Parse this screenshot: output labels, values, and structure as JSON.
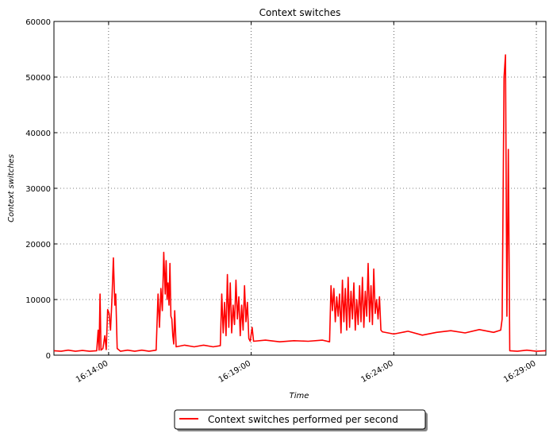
{
  "chart_data": {
    "type": "line",
    "title": "Context switches",
    "xlabel": "Time",
    "ylabel": "Context switches",
    "xlim": [
      "16:12:05",
      "16:29:20"
    ],
    "ylim": [
      0,
      60000
    ],
    "yticks": [
      0,
      10000,
      20000,
      30000,
      40000,
      50000,
      60000
    ],
    "xticks": [
      "16:14:00",
      "16:19:00",
      "16:24:00",
      "16:29:00"
    ],
    "grid": true,
    "legend_position": "bottom-center",
    "series": [
      {
        "name": "Context switches performed per second",
        "color": "#ff0000",
        "points": [
          [
            "16:12:05",
            800
          ],
          [
            "16:12:20",
            700
          ],
          [
            "16:12:35",
            900
          ],
          [
            "16:12:50",
            700
          ],
          [
            "16:13:05",
            850
          ],
          [
            "16:13:20",
            700
          ],
          [
            "16:13:35",
            800
          ],
          [
            "16:13:38",
            4500
          ],
          [
            "16:13:40",
            900
          ],
          [
            "16:13:42",
            11000
          ],
          [
            "16:13:44",
            900
          ],
          [
            "16:13:48",
            1200
          ],
          [
            "16:13:52",
            3500
          ],
          [
            "16:13:55",
            1000
          ],
          [
            "16:13:58",
            8200
          ],
          [
            "16:14:01",
            7500
          ],
          [
            "16:14:04",
            4500
          ],
          [
            "16:14:07",
            10000
          ],
          [
            "16:14:10",
            17500
          ],
          [
            "16:14:13",
            9000
          ],
          [
            "16:14:15",
            11000
          ],
          [
            "16:14:18",
            1200
          ],
          [
            "16:14:25",
            700
          ],
          [
            "16:14:40",
            900
          ],
          [
            "16:14:55",
            700
          ],
          [
            "16:15:10",
            900
          ],
          [
            "16:15:25",
            700
          ],
          [
            "16:15:40",
            900
          ],
          [
            "16:15:44",
            11000
          ],
          [
            "16:15:47",
            5000
          ],
          [
            "16:15:50",
            12000
          ],
          [
            "16:15:53",
            8000
          ],
          [
            "16:15:56",
            18500
          ],
          [
            "16:15:59",
            11000
          ],
          [
            "16:16:01",
            17000
          ],
          [
            "16:16:03",
            10000
          ],
          [
            "16:16:05",
            13000
          ],
          [
            "16:16:07",
            9000
          ],
          [
            "16:16:09",
            16500
          ],
          [
            "16:16:11",
            7000
          ],
          [
            "16:16:13",
            6500
          ],
          [
            "16:16:15",
            3500
          ],
          [
            "16:16:17",
            2000
          ],
          [
            "16:16:19",
            8000
          ],
          [
            "16:16:22",
            1500
          ],
          [
            "16:16:40",
            1800
          ],
          [
            "16:17:00",
            1500
          ],
          [
            "16:17:20",
            1800
          ],
          [
            "16:17:40",
            1500
          ],
          [
            "16:17:55",
            1700
          ],
          [
            "16:17:58",
            11000
          ],
          [
            "16:18:01",
            4000
          ],
          [
            "16:18:04",
            9500
          ],
          [
            "16:18:07",
            3500
          ],
          [
            "16:18:10",
            14500
          ],
          [
            "16:18:13",
            5000
          ],
          [
            "16:18:16",
            13000
          ],
          [
            "16:18:19",
            4000
          ],
          [
            "16:18:22",
            9000
          ],
          [
            "16:18:25",
            5500
          ],
          [
            "16:18:28",
            13500
          ],
          [
            "16:18:31",
            6500
          ],
          [
            "16:18:34",
            10500
          ],
          [
            "16:18:37",
            3500
          ],
          [
            "16:18:40",
            9000
          ],
          [
            "16:18:43",
            4500
          ],
          [
            "16:18:46",
            12500
          ],
          [
            "16:18:49",
            6000
          ],
          [
            "16:18:52",
            9500
          ],
          [
            "16:18:55",
            3000
          ],
          [
            "16:18:58",
            2500
          ],
          [
            "16:19:02",
            5000
          ],
          [
            "16:19:05",
            2500
          ],
          [
            "16:19:30",
            2700
          ],
          [
            "16:20:00",
            2400
          ],
          [
            "16:20:30",
            2600
          ],
          [
            "16:21:00",
            2500
          ],
          [
            "16:21:30",
            2700
          ],
          [
            "16:21:45",
            2400
          ],
          [
            "16:21:48",
            12500
          ],
          [
            "16:21:51",
            8000
          ],
          [
            "16:21:54",
            12000
          ],
          [
            "16:21:57",
            6000
          ],
          [
            "16:22:00",
            10500
          ],
          [
            "16:22:03",
            7000
          ],
          [
            "16:22:06",
            11000
          ],
          [
            "16:22:09",
            4000
          ],
          [
            "16:22:12",
            13500
          ],
          [
            "16:22:15",
            6000
          ],
          [
            "16:22:18",
            12000
          ],
          [
            "16:22:21",
            4500
          ],
          [
            "16:22:24",
            14000
          ],
          [
            "16:22:27",
            5000
          ],
          [
            "16:22:30",
            11500
          ],
          [
            "16:22:33",
            6500
          ],
          [
            "16:22:36",
            13000
          ],
          [
            "16:22:39",
            4500
          ],
          [
            "16:22:42",
            10000
          ],
          [
            "16:22:45",
            5500
          ],
          [
            "16:22:48",
            12500
          ],
          [
            "16:22:51",
            6000
          ],
          [
            "16:22:54",
            14000
          ],
          [
            "16:22:57",
            5000
          ],
          [
            "16:23:00",
            11500
          ],
          [
            "16:23:03",
            7000
          ],
          [
            "16:23:06",
            16500
          ],
          [
            "16:23:09",
            6000
          ],
          [
            "16:23:12",
            12500
          ],
          [
            "16:23:15",
            5500
          ],
          [
            "16:23:18",
            15500
          ],
          [
            "16:23:21",
            7500
          ],
          [
            "16:23:24",
            10000
          ],
          [
            "16:23:27",
            6500
          ],
          [
            "16:23:30",
            10500
          ],
          [
            "16:23:33",
            4500
          ],
          [
            "16:23:36",
            4200
          ],
          [
            "16:24:00",
            3800
          ],
          [
            "16:24:30",
            4300
          ],
          [
            "16:25:00",
            3600
          ],
          [
            "16:25:30",
            4100
          ],
          [
            "16:26:00",
            4400
          ],
          [
            "16:26:30",
            4000
          ],
          [
            "16:27:00",
            4600
          ],
          [
            "16:27:30",
            4100
          ],
          [
            "16:27:45",
            4500
          ],
          [
            "16:27:48",
            6500
          ],
          [
            "16:27:52",
            50000
          ],
          [
            "16:27:55",
            54000
          ],
          [
            "16:27:58",
            7000
          ],
          [
            "16:28:01",
            37000
          ],
          [
            "16:28:04",
            800
          ],
          [
            "16:28:20",
            700
          ],
          [
            "16:28:40",
            900
          ],
          [
            "16:29:00",
            700
          ],
          [
            "16:29:20",
            800
          ]
        ]
      }
    ]
  }
}
